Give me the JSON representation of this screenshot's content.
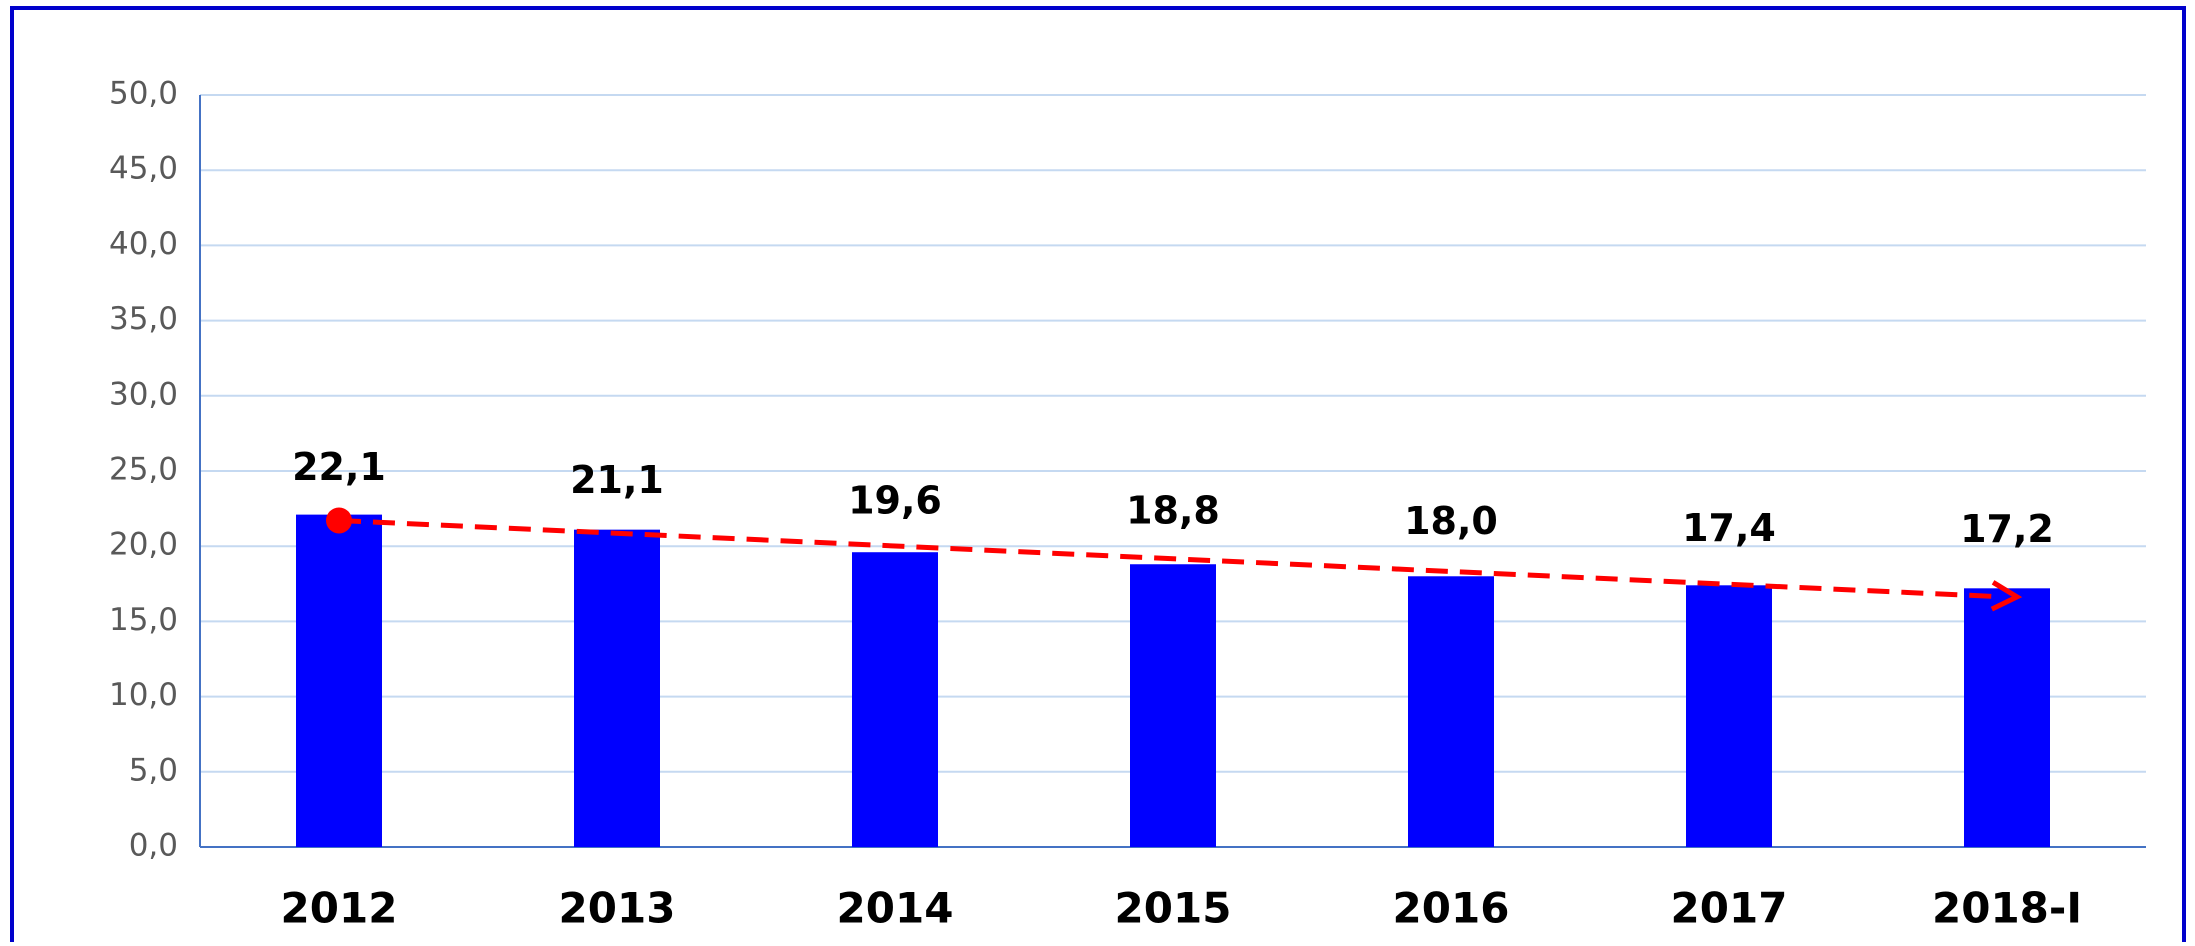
{
  "chart_data": {
    "type": "bar",
    "categories": [
      "2012",
      "2013",
      "2014",
      "2015",
      "2016",
      "2017",
      "2018-I"
    ],
    "values": [
      22.1,
      21.1,
      19.6,
      18.8,
      18.0,
      17.4,
      17.2
    ],
    "value_labels": [
      "22,1",
      "21,1",
      "19,6",
      "18,8",
      "18,0",
      "17,4",
      "17,2"
    ],
    "color": "#0000ff",
    "ylim": [
      0,
      50
    ],
    "yticks": [
      {
        "value": 0,
        "label": "0,0"
      },
      {
        "value": 5,
        "label": "5,0"
      },
      {
        "value": 10,
        "label": "10,0"
      },
      {
        "value": 15,
        "label": "15,0"
      },
      {
        "value": 20,
        "label": "20,0"
      },
      {
        "value": 25,
        "label": "25,0"
      },
      {
        "value": 30,
        "label": "30,0"
      },
      {
        "value": 35,
        "label": "35,0"
      },
      {
        "value": 40,
        "label": "40,0"
      },
      {
        "value": 45,
        "label": "45,0"
      },
      {
        "value": 50,
        "label": "50,0"
      }
    ],
    "grid": true,
    "trend_color": "#ff0000"
  }
}
